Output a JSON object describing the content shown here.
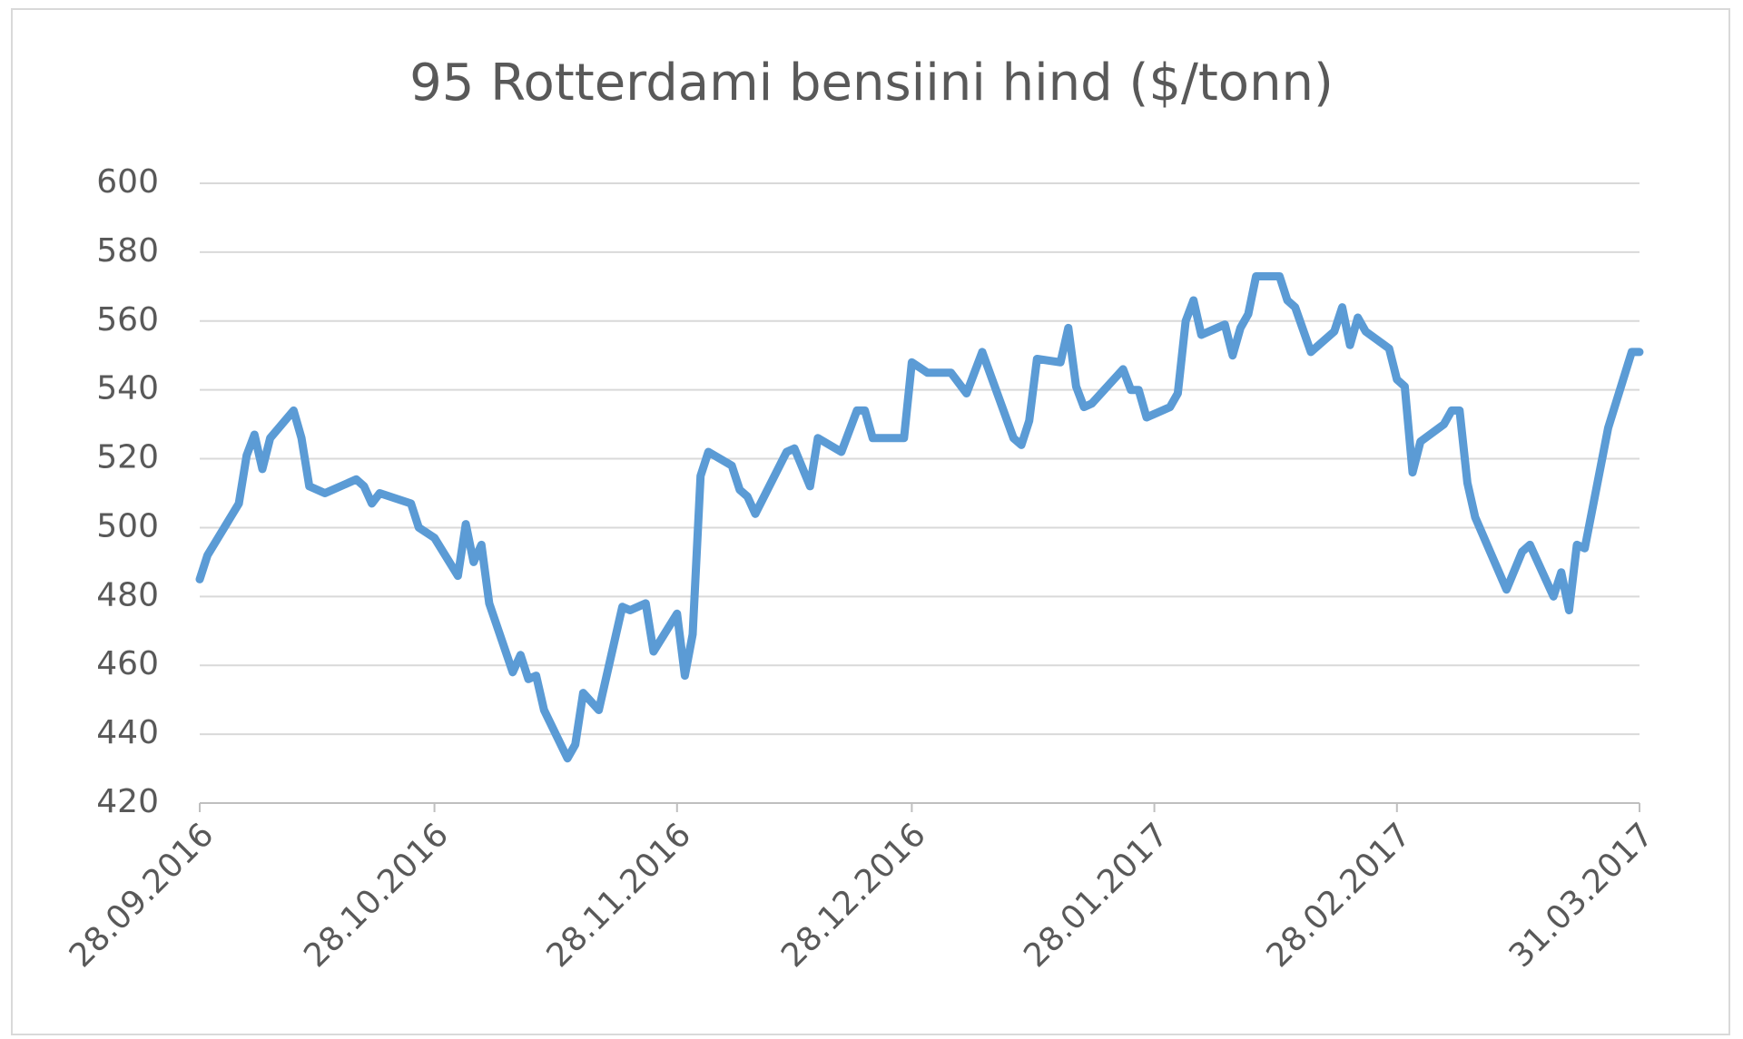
{
  "chart_data": {
    "type": "line",
    "title": "95 Rotterdami bensiini hind ($/tonn)",
    "color": "#5b9bd5",
    "grid": true,
    "x": [
      "2016-09-28",
      "2016-09-29",
      "2016-10-03",
      "2016-10-04",
      "2016-10-05",
      "2016-10-06",
      "2016-10-07",
      "2016-10-10",
      "2016-10-11",
      "2016-10-12",
      "2016-10-14",
      "2016-10-18",
      "2016-10-19",
      "2016-10-20",
      "2016-10-21",
      "2016-10-25",
      "2016-10-26",
      "2016-10-28",
      "2016-10-31",
      "2016-11-01",
      "2016-11-02",
      "2016-11-03",
      "2016-11-04",
      "2016-11-07",
      "2016-11-08",
      "2016-11-09",
      "2016-11-10",
      "2016-11-11",
      "2016-11-14",
      "2016-11-15",
      "2016-11-16",
      "2016-11-18",
      "2016-11-21",
      "2016-11-22",
      "2016-11-24",
      "2016-11-25",
      "2016-11-28",
      "2016-11-29",
      "2016-11-30",
      "2016-12-01",
      "2016-12-02",
      "2016-12-05",
      "2016-12-06",
      "2016-12-07",
      "2016-12-08",
      "2016-12-12",
      "2016-12-13",
      "2016-12-15",
      "2016-12-16",
      "2016-12-19",
      "2016-12-21",
      "2016-12-22",
      "2016-12-23",
      "2016-12-27",
      "2016-12-28",
      "2016-12-30",
      "2017-01-02",
      "2017-01-04",
      "2017-01-06",
      "2017-01-10",
      "2017-01-11",
      "2017-01-12",
      "2017-01-13",
      "2017-01-16",
      "2017-01-17",
      "2017-01-18",
      "2017-01-19",
      "2017-01-20",
      "2017-01-24",
      "2017-01-25",
      "2017-01-26",
      "2017-01-27",
      "2017-01-30",
      "2017-01-31",
      "2017-02-01",
      "2017-02-02",
      "2017-02-03",
      "2017-02-06",
      "2017-02-07",
      "2017-02-08",
      "2017-02-09",
      "2017-02-10",
      "2017-02-13",
      "2017-02-14",
      "2017-02-15",
      "2017-02-17",
      "2017-02-20",
      "2017-02-21",
      "2017-02-22",
      "2017-02-23",
      "2017-02-24",
      "2017-02-27",
      "2017-02-28",
      "2017-03-01",
      "2017-03-02",
      "2017-03-03",
      "2017-03-06",
      "2017-03-07",
      "2017-03-08",
      "2017-03-09",
      "2017-03-10",
      "2017-03-14",
      "2017-03-16",
      "2017-03-17",
      "2017-03-20",
      "2017-03-21",
      "2017-03-22",
      "2017-03-23",
      "2017-03-24",
      "2017-03-27",
      "2017-03-30",
      "2017-03-31"
    ],
    "values": [
      485,
      492,
      507,
      521,
      527,
      517,
      526,
      534,
      526,
      512,
      510,
      514,
      512,
      507,
      510,
      507,
      500,
      497,
      486,
      501,
      490,
      495,
      478,
      458,
      463,
      456,
      457,
      447,
      433,
      437,
      452,
      447,
      477,
      476,
      478,
      464,
      475,
      457,
      469,
      515,
      522,
      518,
      511,
      509,
      504,
      522,
      523,
      512,
      526,
      522,
      534,
      534,
      526,
      526,
      548,
      545,
      545,
      539,
      551,
      526,
      524,
      531,
      549,
      548,
      558,
      541,
      535,
      536,
      546,
      540,
      540,
      532,
      535,
      539,
      560,
      566,
      556,
      559,
      550,
      558,
      562,
      573,
      573,
      566,
      564,
      551,
      557,
      564,
      553,
      561,
      557,
      552,
      543,
      541,
      516,
      525,
      530,
      534,
      534,
      513,
      503,
      482,
      493,
      495,
      480,
      487,
      476,
      495,
      494,
      529,
      551,
      551
    ],
    "xlim": [
      "2016-09-28",
      "2017-03-31"
    ],
    "xticks": [
      {
        "value": "2016-09-28",
        "label": "28.09.2016"
      },
      {
        "value": "2016-10-28",
        "label": "28.10.2016"
      },
      {
        "value": "2016-11-28",
        "label": "28.11.2016"
      },
      {
        "value": "2016-12-28",
        "label": "28.12.2016"
      },
      {
        "value": "2017-01-28",
        "label": "28.01.2017"
      },
      {
        "value": "2017-02-28",
        "label": "28.02.2017"
      },
      {
        "value": "2017-03-31",
        "label": "31.03.2017"
      }
    ],
    "ylim": [
      420,
      600
    ],
    "yticks": [
      420,
      440,
      460,
      480,
      500,
      520,
      540,
      560,
      580,
      600
    ]
  }
}
